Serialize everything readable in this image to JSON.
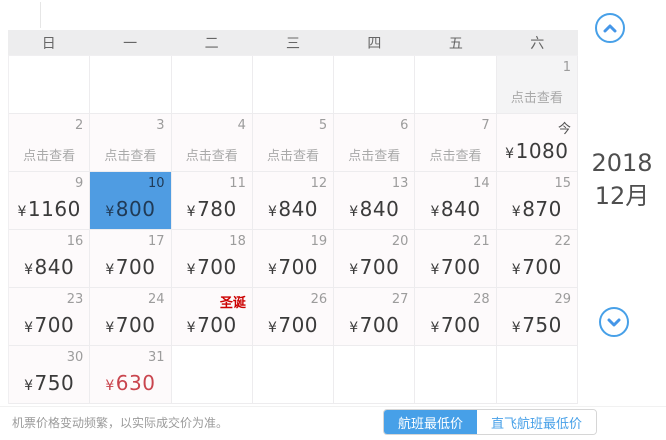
{
  "calendar": {
    "weekdays": [
      "日",
      "一",
      "二",
      "三",
      "四",
      "五",
      "六"
    ],
    "currency": "¥",
    "check_label": "点击查看",
    "weeks": [
      [
        {
          "type": "blank"
        },
        {
          "type": "blank"
        },
        {
          "type": "blank"
        },
        {
          "type": "blank"
        },
        {
          "type": "blank"
        },
        {
          "type": "blank"
        },
        {
          "type": "link",
          "day": "1",
          "muted_bg": true
        }
      ],
      [
        {
          "type": "link",
          "day": "2"
        },
        {
          "type": "link",
          "day": "3"
        },
        {
          "type": "link",
          "day": "4"
        },
        {
          "type": "link",
          "day": "5"
        },
        {
          "type": "link",
          "day": "6"
        },
        {
          "type": "link",
          "day": "7"
        },
        {
          "type": "price",
          "day": "今",
          "today": true,
          "price": "1080"
        }
      ],
      [
        {
          "type": "price",
          "day": "9",
          "price": "1160"
        },
        {
          "type": "price",
          "day": "10",
          "price": "800",
          "selected": true
        },
        {
          "type": "price",
          "day": "11",
          "price": "780"
        },
        {
          "type": "price",
          "day": "12",
          "price": "840"
        },
        {
          "type": "price",
          "day": "13",
          "price": "840"
        },
        {
          "type": "price",
          "day": "14",
          "price": "840"
        },
        {
          "type": "price",
          "day": "15",
          "price": "870"
        }
      ],
      [
        {
          "type": "price",
          "day": "16",
          "price": "840"
        },
        {
          "type": "price",
          "day": "17",
          "price": "700"
        },
        {
          "type": "price",
          "day": "18",
          "price": "700"
        },
        {
          "type": "price",
          "day": "19",
          "price": "700"
        },
        {
          "type": "price",
          "day": "20",
          "price": "700"
        },
        {
          "type": "price",
          "day": "21",
          "price": "700"
        },
        {
          "type": "price",
          "day": "22",
          "price": "700"
        }
      ],
      [
        {
          "type": "price",
          "day": "23",
          "price": "700"
        },
        {
          "type": "price",
          "day": "24",
          "price": "700"
        },
        {
          "type": "price",
          "day": "圣诞",
          "holiday": true,
          "price": "700"
        },
        {
          "type": "price",
          "day": "26",
          "price": "700"
        },
        {
          "type": "price",
          "day": "27",
          "price": "700"
        },
        {
          "type": "price",
          "day": "28",
          "price": "700"
        },
        {
          "type": "price",
          "day": "29",
          "price": "750"
        }
      ],
      [
        {
          "type": "price",
          "day": "30",
          "price": "750"
        },
        {
          "type": "price",
          "day": "31",
          "price": "630",
          "discount": true
        },
        {
          "type": "blank"
        },
        {
          "type": "blank"
        },
        {
          "type": "blank"
        },
        {
          "type": "blank"
        },
        {
          "type": "blank"
        }
      ]
    ]
  },
  "month_nav": {
    "year": "2018",
    "month": "12月",
    "up_icon": "chevron-up",
    "down_icon": "chevron-down"
  },
  "footer": {
    "disclaimer": "机票价格变动频繁，以实际成交价为准。",
    "lowest_button": "航班最低价",
    "direct_lowest_button": "直飞航班最低价"
  },
  "colors": {
    "accent_blue": "#47a0e8",
    "selected_blue": "#4f9ce2",
    "holiday_red": "#cc0000",
    "discount_red": "#c9454e",
    "header_gray": "#ededee"
  }
}
